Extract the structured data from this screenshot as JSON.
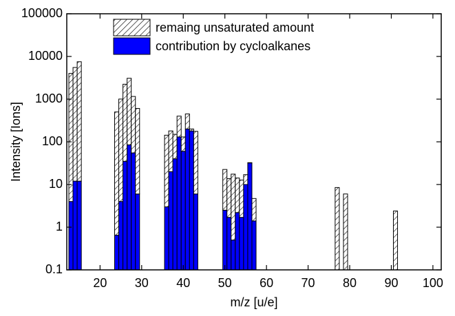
{
  "chart_data": {
    "type": "bar",
    "stacked": true,
    "log_y": true,
    "xlabel": "m/z [u/e]",
    "ylabel": "Intensity [Ions]",
    "x": [
      13,
      14,
      15,
      24,
      25,
      26,
      27,
      28,
      29,
      36,
      37,
      38,
      39,
      40,
      41,
      42,
      43,
      50,
      51,
      52,
      53,
      54,
      55,
      56,
      57,
      77,
      79,
      91
    ],
    "series": [
      {
        "name": "contribution by cycloalkanes",
        "color": "#0000ff",
        "values": [
          4,
          12,
          12,
          0.65,
          4,
          35,
          85,
          55,
          6,
          3,
          20,
          40,
          130,
          60,
          200,
          180,
          6,
          2.5,
          1.7,
          0.5,
          2.2,
          1.7,
          10,
          32,
          1.4,
          null,
          null,
          null
        ]
      },
      {
        "name": "remaing unsaturated amount",
        "color": "#ffffff",
        "hatch": true,
        "values": [
          4000,
          5500,
          7500,
          500,
          1000,
          2200,
          3000,
          1100,
          600,
          140,
          160,
          110,
          270,
          70,
          250,
          20,
          170,
          20,
          12,
          17,
          12,
          11,
          7,
          0.5,
          3.3,
          8.5,
          6,
          2.4
        ]
      }
    ],
    "xlim": [
      12,
      102
    ],
    "xticks": [
      20,
      30,
      40,
      50,
      60,
      70,
      80,
      90,
      100
    ],
    "ylim": [
      0.1,
      100000
    ],
    "yticks": [
      0.1,
      1,
      10,
      100,
      1000,
      10000,
      100000
    ],
    "legend": "top"
  }
}
